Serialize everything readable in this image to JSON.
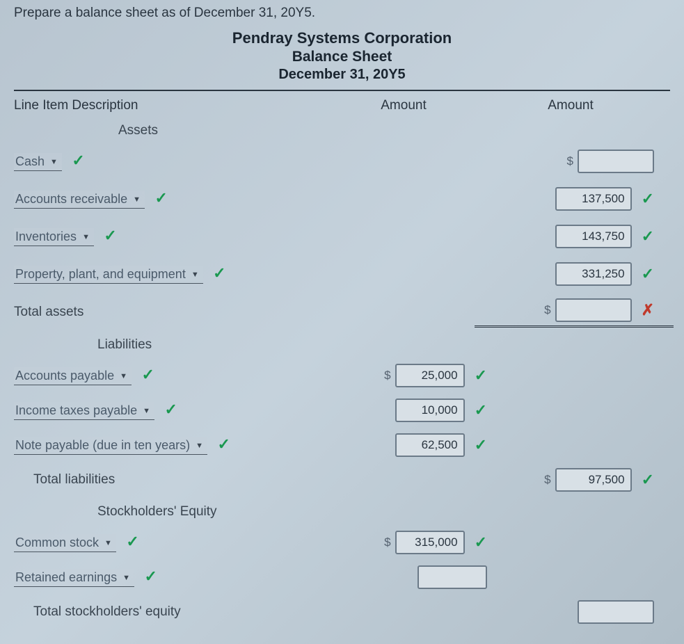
{
  "instruction": "Prepare a balance sheet as of December 31, 20Y5.",
  "header": {
    "company": "Pendray Systems Corporation",
    "title": "Balance Sheet",
    "date": "December 31, 20Y5"
  },
  "columns": {
    "c1": "Line Item Description",
    "c2": "Amount",
    "c3": "Amount"
  },
  "sections": {
    "assets": "Assets",
    "liabilities": "Liabilities",
    "equity": "Stockholders' Equity"
  },
  "rows": {
    "cash": {
      "label": "Cash",
      "mark": "✓",
      "amt2": "",
      "amt2_prefix": "$"
    },
    "ar": {
      "label": "Accounts receivable",
      "mark": "✓",
      "amt2": "137,500",
      "amt2_mark": "✓"
    },
    "inv": {
      "label": "Inventories",
      "mark": "✓",
      "amt2": "143,750",
      "amt2_mark": "✓"
    },
    "ppe": {
      "label": "Property, plant, and equipment",
      "mark": "✓",
      "amt2": "331,250",
      "amt2_mark": "✓"
    },
    "total_assets": {
      "label": "Total assets",
      "amt2": "",
      "amt2_prefix": "$",
      "amt2_mark": "✗"
    },
    "ap": {
      "label": "Accounts payable",
      "mark": "✓",
      "amt1": "25,000",
      "amt1_prefix": "$",
      "amt1_mark": "✓"
    },
    "itp": {
      "label": "Income taxes payable",
      "mark": "✓",
      "amt1": "10,000",
      "amt1_mark": "✓"
    },
    "np": {
      "label": "Note payable (due in ten years)",
      "mark": "✓",
      "amt1": "62,500",
      "amt1_mark": "✓"
    },
    "total_liab": {
      "label": "Total liabilities",
      "amt2": "97,500",
      "amt2_prefix": "$",
      "amt2_mark": "✓"
    },
    "cs": {
      "label": "Common stock",
      "mark": "✓",
      "amt1": "315,000",
      "amt1_prefix": "$",
      "amt1_mark": "✓"
    },
    "re": {
      "label": "Retained earnings",
      "mark": "✓",
      "amt1": ""
    },
    "total_se": {
      "label": "Total stockholders' equity",
      "amt2": ""
    }
  },
  "marks": {
    "check": "✓",
    "cross": "✗"
  },
  "colors": {
    "check": "#1a9850",
    "cross": "#c0392b",
    "box_border": "#6b7a88",
    "box_bg": "#d8e0e6",
    "text": "#2a3540"
  }
}
